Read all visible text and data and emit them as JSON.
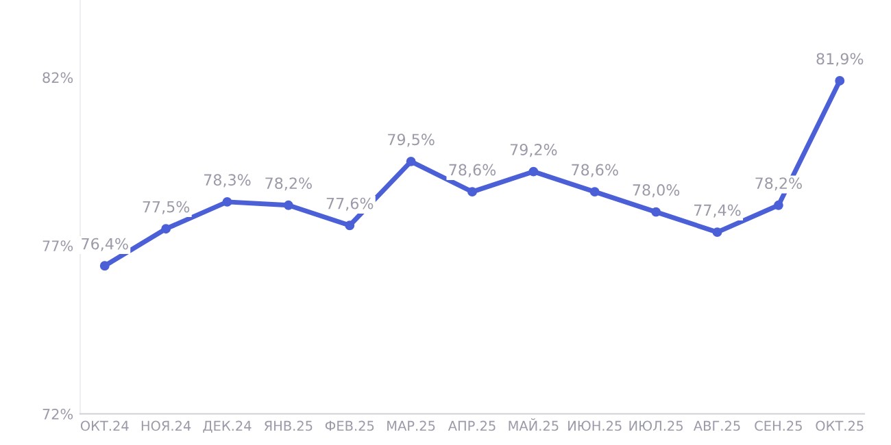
{
  "chart_data": {
    "type": "line",
    "categories": [
      "ОКТ.24",
      "НОЯ.24",
      "ДЕК.24",
      "ЯНВ.25",
      "ФЕВ.25",
      "МАР.25",
      "АПР.25",
      "МАЙ.25",
      "ИЮН.25",
      "ИЮЛ.25",
      "АВГ.25",
      "СЕН.25",
      "ОКТ.25"
    ],
    "series": [
      {
        "color": "#4b5fd6",
        "values": [
          76.4,
          77.5,
          78.3,
          78.2,
          77.6,
          79.5,
          78.6,
          79.2,
          78.6,
          78.0,
          77.4,
          78.2,
          81.9
        ],
        "value_labels": [
          "76,4%",
          "77,5%",
          "78,3%",
          "78,2%",
          "77,6%",
          "79,5%",
          "78,6%",
          "79,2%",
          "78,6%",
          "78,0%",
          "77,4%",
          "78,2%",
          "81,9%"
        ]
      }
    ],
    "ylim": [
      72,
      84.3
    ],
    "yticks": [
      {
        "value": 72,
        "label": "72%"
      },
      {
        "value": 77,
        "label": "77%"
      },
      {
        "value": 82,
        "label": "82%"
      }
    ],
    "grid": false,
    "legend": false,
    "marker": "circle",
    "line_style": "solid"
  }
}
